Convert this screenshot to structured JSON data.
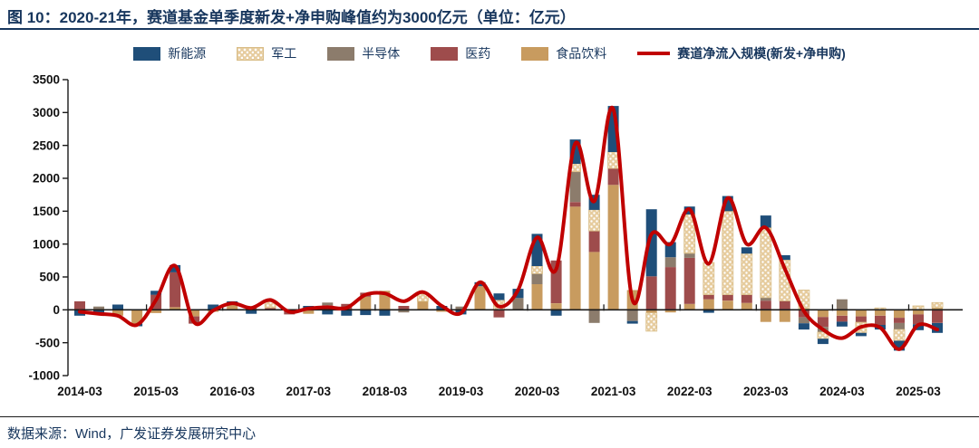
{
  "header": {
    "title": "图 10：2020-21年，赛道基金单季度新发+净申购峰值约为3000亿元（单位：亿元）"
  },
  "footer": {
    "source": "数据来源：Wind，广发证券发展研究中心"
  },
  "chart_data": {
    "type": "bar",
    "subtype": "stacked-bars-with-smoothed-line",
    "unit": "亿元",
    "grid": false,
    "legend_position": "top",
    "ylim": [
      -1000,
      3500
    ],
    "yticks": [
      3500,
      3000,
      2500,
      2000,
      1500,
      1000,
      500,
      0,
      -500,
      -1000
    ],
    "x_axis_tick_labels": [
      "2014-03",
      "2015-03",
      "2016-03",
      "2017-03",
      "2018-03",
      "2019-03",
      "2020-03",
      "2021-03",
      "2022-03",
      "2023-03",
      "2024-03",
      "2025-03"
    ],
    "x": [
      "2014-03",
      "2014-06",
      "2014-09",
      "2014-12",
      "2015-03",
      "2015-06",
      "2015-09",
      "2015-12",
      "2016-03",
      "2016-06",
      "2016-09",
      "2016-12",
      "2017-03",
      "2017-06",
      "2017-09",
      "2017-12",
      "2018-03",
      "2018-06",
      "2018-09",
      "2018-12",
      "2019-03",
      "2019-06",
      "2019-09",
      "2019-12",
      "2020-03",
      "2020-06",
      "2020-09",
      "2020-12",
      "2021-03",
      "2021-06",
      "2021-09",
      "2021-12",
      "2022-03",
      "2022-06",
      "2022-09",
      "2022-12",
      "2023-03",
      "2023-06",
      "2023-09",
      "2023-12",
      "2024-03",
      "2024-06",
      "2024-09",
      "2024-12",
      "2025-03",
      "2025-06"
    ],
    "stack_order_bottom_to_top": [
      "食品饮料",
      "医药",
      "半导体",
      "军工",
      "新能源"
    ],
    "series": [
      {
        "name": "新能源",
        "color": "#1F4E79",
        "values": [
          -90,
          -70,
          80,
          -40,
          60,
          110,
          0,
          80,
          40,
          -60,
          0,
          0,
          60,
          -70,
          -90,
          -80,
          -90,
          0,
          0,
          60,
          -70,
          60,
          100,
          140,
          490,
          -90,
          370,
          230,
          700,
          -40,
          1020,
          230,
          120,
          -45,
          230,
          95,
          185,
          70,
          -95,
          -80,
          -75,
          -50,
          -70,
          -150,
          -90,
          -150
        ]
      },
      {
        "name": "军工",
        "color": "#E6CC9E",
        "pattern": "white-dots",
        "pattern_border": "#D8BC86",
        "values": [
          0,
          0,
          0,
          0,
          0,
          0,
          0,
          0,
          0,
          0,
          90,
          0,
          0,
          0,
          0,
          0,
          0,
          0,
          110,
          0,
          0,
          0,
          150,
          0,
          115,
          0,
          120,
          320,
          250,
          0,
          -280,
          0,
          590,
          490,
          1270,
          625,
          1065,
          625,
          280,
          -100,
          0,
          -160,
          30,
          -170,
          60,
          80
        ]
      },
      {
        "name": "半导体",
        "color": "#8C7C6C",
        "values": [
          0,
          50,
          0,
          0,
          0,
          0,
          0,
          0,
          0,
          0,
          0,
          0,
          0,
          40,
          0,
          0,
          0,
          -40,
          0,
          0,
          50,
          0,
          0,
          180,
          160,
          0,
          460,
          -200,
          0,
          -170,
          0,
          150,
          70,
          0,
          0,
          0,
          45,
          0,
          -90,
          -80,
          160,
          0,
          0,
          -100,
          0,
          0
        ]
      },
      {
        "name": "医药",
        "color": "#9E4C4C",
        "values": [
          130,
          0,
          0,
          0,
          230,
          530,
          -110,
          0,
          0,
          50,
          30,
          -70,
          0,
          70,
          90,
          60,
          0,
          60,
          0,
          0,
          0,
          0,
          -115,
          0,
          0,
          650,
          70,
          320,
          250,
          0,
          510,
          650,
          700,
          70,
          90,
          125,
          140,
          135,
          -115,
          -150,
          -90,
          -90,
          -140,
          -80,
          -150,
          -200
        ]
      },
      {
        "name": "食品饮料",
        "color": "#C89B5F",
        "values": [
          0,
          0,
          -90,
          -210,
          -50,
          40,
          -100,
          -30,
          90,
          0,
          0,
          0,
          -60,
          0,
          0,
          200,
          290,
          0,
          130,
          -30,
          0,
          360,
          0,
          0,
          390,
          100,
          1570,
          880,
          1900,
          300,
          -45,
          -40,
          90,
          160,
          140,
          105,
          -185,
          -185,
          20,
          -110,
          -90,
          -100,
          -90,
          -120,
          -70,
          30
        ]
      }
    ],
    "line_series": {
      "name": "赛道净流入规模(新发+净申购)",
      "color": "#C00000",
      "values": [
        -30,
        -60,
        -90,
        -230,
        150,
        670,
        -190,
        -10,
        100,
        30,
        150,
        -30,
        20,
        40,
        30,
        230,
        250,
        130,
        270,
        60,
        -50,
        420,
        50,
        300,
        1100,
        620,
        2530,
        1650,
        3050,
        150,
        1150,
        1000,
        1530,
        700,
        1700,
        1000,
        1250,
        625,
        -20,
        -300,
        -430,
        -260,
        -270,
        -600,
        -230,
        -300
      ]
    }
  }
}
